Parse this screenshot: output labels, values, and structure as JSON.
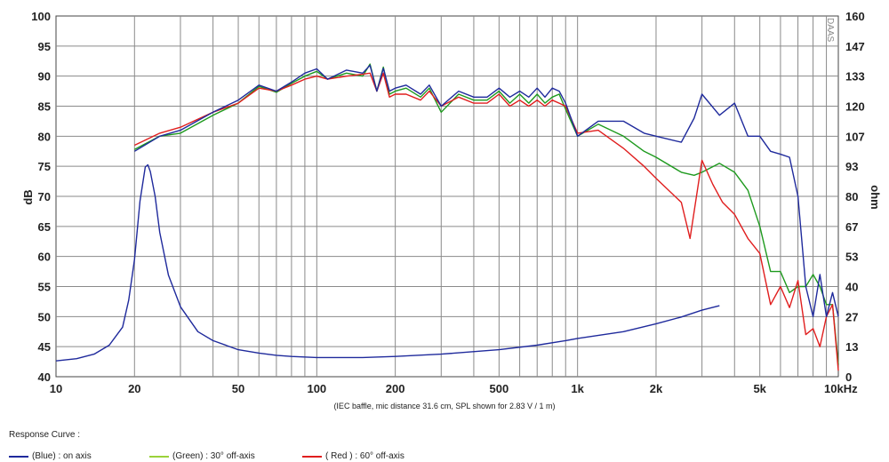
{
  "chart_data": {
    "type": "line",
    "title": "",
    "xlabel": "",
    "ylabel": "dB",
    "y2label": "ohm",
    "xscale": "log",
    "xlim": [
      10,
      10000
    ],
    "ylim": [
      40,
      100
    ],
    "y2lim": [
      0,
      160
    ],
    "x_tick_labels": [
      "10",
      "20",
      "50",
      "100",
      "200",
      "500",
      "1k",
      "2k",
      "5k",
      "10kHz"
    ],
    "x_tick_values": [
      10,
      20,
      50,
      100,
      200,
      500,
      1000,
      2000,
      5000,
      10000
    ],
    "y_ticks": [
      40,
      45,
      50,
      55,
      60,
      65,
      70,
      75,
      80,
      85,
      90,
      95,
      100
    ],
    "y2_tick_labels": [
      "0",
      "13",
      "27",
      "40",
      "53",
      "67",
      "80",
      "93",
      "107",
      "120",
      "133",
      "147",
      "160"
    ],
    "grid": true,
    "note": "(IEC baffle, mic distance 31.6 cm, SPL shown for 2.83 V / 1 m)",
    "watermark": "DAAS",
    "legend_position": "bottom",
    "legend_title": "Response Curve :",
    "series": [
      {
        "name": "(Blue)  : on axis",
        "color": "#1f2a9c",
        "x": [
          20,
          25,
          30,
          40,
          50,
          60,
          70,
          80,
          90,
          100,
          110,
          130,
          150,
          160,
          170,
          180,
          190,
          200,
          220,
          250,
          270,
          300,
          350,
          400,
          450,
          500,
          550,
          600,
          650,
          700,
          750,
          800,
          850,
          900,
          1000,
          1200,
          1500,
          1800,
          2000,
          2500,
          2800,
          3000,
          3500,
          4000,
          4500,
          5000,
          5500,
          6000,
          6500,
          7000,
          7500,
          8000,
          8500,
          9000,
          9500,
          10000
        ],
        "y": [
          77.5,
          80,
          81,
          84,
          86,
          88.5,
          87.5,
          89,
          90.5,
          91.2,
          89.5,
          91,
          90.5,
          91.8,
          87.5,
          91.3,
          87.5,
          88,
          88.5,
          87,
          88.5,
          85,
          87.5,
          86.5,
          86.5,
          88,
          86.5,
          87.5,
          86.5,
          88,
          86.5,
          88,
          87.5,
          85.5,
          80,
          82.5,
          82.5,
          80.5,
          80,
          79,
          83,
          87,
          83.5,
          85.5,
          80,
          80,
          77.5,
          77,
          76.5,
          70,
          55,
          50,
          57,
          50,
          54,
          50
        ]
      },
      {
        "name": "(Green) : 30° off-axis",
        "color": "#1e9a1e",
        "x": [
          20,
          25,
          30,
          40,
          50,
          60,
          70,
          80,
          90,
          100,
          110,
          130,
          150,
          160,
          170,
          180,
          190,
          200,
          220,
          250,
          270,
          300,
          350,
          400,
          450,
          500,
          550,
          600,
          650,
          700,
          750,
          800,
          850,
          900,
          1000,
          1200,
          1500,
          1800,
          2000,
          2500,
          2800,
          3000,
          3500,
          4000,
          4500,
          5000,
          5500,
          6000,
          6500,
          7000,
          7500,
          8000,
          8500,
          9000,
          9500,
          10000
        ],
        "y": [
          77.8,
          80,
          80.5,
          83.5,
          85.5,
          88.3,
          87.3,
          88.8,
          90,
          90.8,
          89.5,
          90.5,
          90,
          92,
          87.5,
          91.5,
          87,
          87.5,
          88,
          86.5,
          88,
          84,
          87,
          86,
          86,
          87.5,
          85.5,
          87,
          85.5,
          87,
          85.5,
          86.5,
          87,
          84.5,
          80,
          82,
          80,
          77.5,
          76.5,
          74,
          73.5,
          74,
          75.5,
          74,
          71,
          65,
          57.5,
          57.5,
          54,
          55,
          55,
          57,
          55,
          52,
          52,
          42
        ]
      },
      {
        "name": "( Red ) : 60° off-axis",
        "color": "#e01e1e",
        "x": [
          20,
          25,
          30,
          40,
          50,
          60,
          70,
          80,
          90,
          100,
          110,
          130,
          150,
          160,
          170,
          180,
          190,
          200,
          220,
          250,
          270,
          300,
          350,
          400,
          450,
          500,
          550,
          600,
          650,
          700,
          750,
          800,
          850,
          900,
          1000,
          1200,
          1500,
          1800,
          2000,
          2500,
          2700,
          3000,
          3300,
          3600,
          4000,
          4500,
          5000,
          5500,
          6000,
          6500,
          7000,
          7500,
          8000,
          8500,
          9000,
          9500,
          10000
        ],
        "y": [
          78.5,
          80.5,
          81.5,
          84,
          85.5,
          88,
          87.5,
          88.5,
          89.5,
          90,
          89.5,
          90,
          90.3,
          90.5,
          87.5,
          90.5,
          86.5,
          87,
          87,
          86,
          87.5,
          85,
          86.5,
          85.5,
          85.5,
          87,
          85,
          86,
          85,
          86,
          85,
          86,
          85.5,
          85,
          80.5,
          81,
          78,
          75,
          73,
          69,
          63,
          76,
          72,
          69,
          67,
          63,
          60.5,
          52,
          55,
          51.5,
          56,
          47,
          48,
          45,
          50,
          52,
          41
        ]
      }
    ],
    "impedance": {
      "name": "impedance",
      "color": "#1f2a9c",
      "axis": "y2",
      "x": [
        10,
        12,
        14,
        16,
        18,
        19,
        20,
        21,
        22,
        22.5,
        23,
        24,
        25,
        27,
        30,
        35,
        40,
        50,
        60,
        70,
        80,
        100,
        150,
        200,
        300,
        500,
        700,
        900,
        1000,
        1500,
        2000,
        2500,
        3000,
        3500
      ],
      "y": [
        7,
        8,
        10,
        14,
        22,
        34,
        52,
        78,
        93,
        94,
        91,
        80,
        64,
        45,
        31,
        20,
        16,
        12,
        10.5,
        9.5,
        9,
        8.5,
        8.5,
        9,
        10,
        12,
        14,
        16,
        17,
        20,
        23.5,
        26.5,
        29.5,
        31.5
      ]
    }
  }
}
